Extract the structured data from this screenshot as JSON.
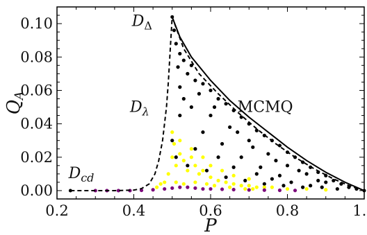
{
  "chart_data": {
    "type": "scatter",
    "xlabel": "P",
    "ylabel": "Q_A",
    "xlim": [
      0.2,
      1.0
    ],
    "ylim": [
      -0.005,
      0.11
    ],
    "x_ticks": [
      "0.2",
      "0.4",
      "0.6",
      "0.8",
      "1.0"
    ],
    "y_ticks": [
      "0.00",
      "0.02",
      "0.04",
      "0.06",
      "0.08",
      "0.10"
    ],
    "annotations": {
      "d_cd": {
        "main": "D",
        "sub": "cd",
        "x": 0.23,
        "y": 0.0075
      },
      "d_lambda": {
        "main": "D",
        "sub": "λ",
        "x": 0.39,
        "y": 0.047
      },
      "d_delta": {
        "main": "D",
        "sub": "Δ",
        "x": 0.395,
        "y": 0.0985
      },
      "mcmq": {
        "text": "MCMQ",
        "x": 0.67,
        "y": 0.047
      }
    },
    "curves": [
      {
        "name": "D_λ (dashed boundary)",
        "style": "dashed",
        "color": "#000000",
        "points": [
          [
            0.235,
            0.0
          ],
          [
            0.3,
            0.0
          ],
          [
            0.35,
            0.0
          ],
          [
            0.4,
            0.0003
          ],
          [
            0.42,
            0.0012
          ],
          [
            0.44,
            0.004
          ],
          [
            0.455,
            0.01
          ],
          [
            0.465,
            0.018
          ],
          [
            0.475,
            0.03
          ],
          [
            0.485,
            0.05
          ],
          [
            0.49,
            0.065
          ],
          [
            0.495,
            0.085
          ],
          [
            0.5,
            0.104
          ]
        ]
      },
      {
        "name": "MCMQ upper boundary",
        "style": "solid",
        "color": "#000000",
        "points": [
          [
            0.5,
            0.104
          ],
          [
            0.52,
            0.092
          ],
          [
            0.55,
            0.08
          ],
          [
            0.6,
            0.066
          ],
          [
            0.65,
            0.054
          ],
          [
            0.7,
            0.044
          ],
          [
            0.75,
            0.035
          ],
          [
            0.8,
            0.026
          ],
          [
            0.85,
            0.018
          ],
          [
            0.9,
            0.011
          ],
          [
            0.95,
            0.005
          ],
          [
            1.0,
            0.0
          ]
        ]
      },
      {
        "name": "lower dashed boundary",
        "style": "dashed",
        "color": "#000000",
        "points": [
          [
            0.5,
            0.104
          ],
          [
            0.53,
            0.085
          ],
          [
            0.57,
            0.07
          ],
          [
            0.62,
            0.058
          ],
          [
            0.67,
            0.047
          ],
          [
            0.72,
            0.037
          ],
          [
            0.77,
            0.028
          ],
          [
            0.82,
            0.02
          ],
          [
            0.87,
            0.013
          ],
          [
            0.92,
            0.007
          ],
          [
            0.96,
            0.003
          ],
          [
            1.0,
            0.0
          ]
        ]
      }
    ],
    "scatter_series": [
      {
        "name": "black",
        "color": "#000000",
        "points": [
          [
            0.505,
            0.096
          ],
          [
            0.51,
            0.088
          ],
          [
            0.52,
            0.082
          ],
          [
            0.515,
            0.074
          ],
          [
            0.53,
            0.078
          ],
          [
            0.54,
            0.07
          ],
          [
            0.55,
            0.075
          ],
          [
            0.56,
            0.066
          ],
          [
            0.52,
            0.062
          ],
          [
            0.58,
            0.064
          ],
          [
            0.6,
            0.06
          ],
          [
            0.62,
            0.055
          ],
          [
            0.64,
            0.052
          ],
          [
            0.66,
            0.048
          ],
          [
            0.68,
            0.044
          ],
          [
            0.7,
            0.04
          ],
          [
            0.72,
            0.036
          ],
          [
            0.74,
            0.033
          ],
          [
            0.76,
            0.03
          ],
          [
            0.78,
            0.027
          ],
          [
            0.8,
            0.023
          ],
          [
            0.82,
            0.02
          ],
          [
            0.84,
            0.017
          ],
          [
            0.86,
            0.014
          ],
          [
            0.88,
            0.011
          ],
          [
            0.9,
            0.009
          ],
          [
            0.92,
            0.006
          ],
          [
            0.94,
            0.004
          ],
          [
            0.96,
            0.002
          ],
          [
            0.98,
            0.001
          ],
          [
            0.55,
            0.05
          ],
          [
            0.6,
            0.045
          ],
          [
            0.65,
            0.038
          ],
          [
            0.7,
            0.03
          ],
          [
            0.75,
            0.022
          ],
          [
            0.8,
            0.015
          ],
          [
            0.85,
            0.01
          ],
          [
            0.9,
            0.005
          ],
          [
            0.52,
            0.045
          ],
          [
            0.58,
            0.035
          ],
          [
            0.63,
            0.028
          ],
          [
            0.68,
            0.02
          ],
          [
            0.73,
            0.014
          ],
          [
            0.78,
            0.009
          ],
          [
            0.53,
            0.055
          ],
          [
            0.57,
            0.058
          ],
          [
            0.61,
            0.05
          ],
          [
            0.67,
            0.035
          ],
          [
            0.71,
            0.026
          ],
          [
            0.77,
            0.018
          ],
          [
            0.83,
            0.012
          ],
          [
            0.88,
            0.006
          ],
          [
            0.5,
            0.03
          ],
          [
            0.51,
            0.02
          ],
          [
            0.54,
            0.015
          ],
          [
            0.59,
            0.012
          ],
          [
            0.64,
            0.008
          ],
          [
            0.69,
            0.006
          ],
          [
            0.74,
            0.004
          ],
          [
            0.79,
            0.003
          ],
          [
            0.84,
            0.002
          ],
          [
            0.89,
            0.002
          ],
          [
            0.93,
            0.001
          ],
          [
            0.56,
            0.025
          ],
          [
            0.62,
            0.02
          ],
          [
            0.66,
            0.014
          ],
          [
            0.72,
            0.01
          ],
          [
            0.76,
            0.007
          ],
          [
            0.81,
            0.005
          ],
          [
            0.86,
            0.003
          ]
        ]
      },
      {
        "name": "yellow",
        "color": "#ffff00",
        "points": [
          [
            0.48,
            0.005
          ],
          [
            0.49,
            0.01
          ],
          [
            0.5,
            0.02
          ],
          [
            0.5,
            0.035
          ],
          [
            0.505,
            0.028
          ],
          [
            0.51,
            0.015
          ],
          [
            0.52,
            0.022
          ],
          [
            0.53,
            0.018
          ],
          [
            0.54,
            0.012
          ],
          [
            0.55,
            0.02
          ],
          [
            0.56,
            0.015
          ],
          [
            0.57,
            0.01
          ],
          [
            0.58,
            0.012
          ],
          [
            0.6,
            0.008
          ],
          [
            0.62,
            0.006
          ],
          [
            0.64,
            0.005
          ],
          [
            0.66,
            0.004
          ],
          [
            0.68,
            0.003
          ],
          [
            0.7,
            0.003
          ],
          [
            0.72,
            0.002
          ],
          [
            0.74,
            0.002
          ],
          [
            0.76,
            0.002
          ],
          [
            0.8,
            0.001
          ],
          [
            0.85,
            0.001
          ],
          [
            0.9,
            0.0005
          ],
          [
            0.52,
            0.03
          ],
          [
            0.55,
            0.025
          ],
          [
            0.58,
            0.02
          ],
          [
            0.6,
            0.015
          ],
          [
            0.63,
            0.012
          ],
          [
            0.66,
            0.009
          ],
          [
            0.7,
            0.007
          ],
          [
            0.47,
            0.004
          ],
          [
            0.46,
            0.002
          ],
          [
            0.51,
            0.005
          ],
          [
            0.53,
            0.004
          ],
          [
            0.56,
            0.005
          ],
          [
            0.59,
            0.004
          ],
          [
            0.61,
            0.003
          ],
          [
            0.65,
            0.002
          ],
          [
            0.69,
            0.001
          ],
          [
            0.71,
            0.001
          ]
        ]
      },
      {
        "name": "purple",
        "color": "#7b0a7b",
        "points": [
          [
            0.3,
            0.0
          ],
          [
            0.33,
            0.0
          ],
          [
            0.36,
            0.0
          ],
          [
            0.39,
            0.0
          ],
          [
            0.42,
            0.0002
          ],
          [
            0.45,
            0.0005
          ],
          [
            0.48,
            0.001
          ],
          [
            0.5,
            0.0015
          ],
          [
            0.52,
            0.002
          ],
          [
            0.54,
            0.002
          ],
          [
            0.56,
            0.0015
          ],
          [
            0.58,
            0.001
          ],
          [
            0.6,
            0.001
          ],
          [
            0.63,
            0.0008
          ],
          [
            0.66,
            0.0006
          ],
          [
            0.7,
            0.0004
          ],
          [
            0.74,
            0.0003
          ],
          [
            0.78,
            0.0002
          ],
          [
            0.82,
            0.0001
          ]
        ]
      }
    ]
  }
}
